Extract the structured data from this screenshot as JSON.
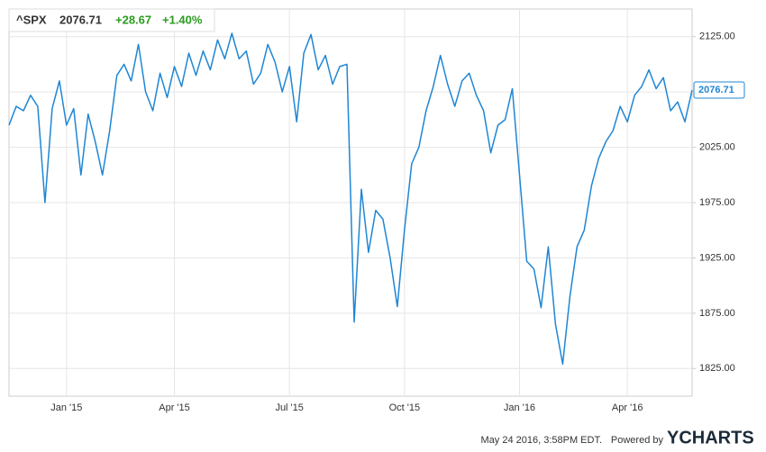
{
  "chart_data": {
    "type": "line",
    "symbol": "^SPX",
    "change": "+28.67",
    "change_pct": "+1.40%",
    "timestamp": "May 24 2016, 3:58PM EDT.",
    "powered_by": "Powered by",
    "logo": "YCHARTS",
    "categories": [
      null,
      null,
      null,
      null,
      null,
      null,
      null,
      null,
      "Jan '15",
      null,
      null,
      null,
      null,
      null,
      null,
      null,
      null,
      null,
      null,
      null,
      null,
      null,
      null,
      "Apr '15",
      null,
      null,
      null,
      null,
      null,
      null,
      null,
      null,
      null,
      null,
      null,
      null,
      null,
      null,
      null,
      "Jul '15",
      null,
      null,
      null,
      null,
      null,
      null,
      null,
      null,
      null,
      null,
      null,
      null,
      null,
      null,
      null,
      "Oct '15",
      null,
      null,
      null,
      null,
      null,
      null,
      null,
      null,
      null,
      null,
      null,
      null,
      null,
      null,
      null,
      "Jan '16",
      null,
      null,
      null,
      null,
      null,
      null,
      null,
      null,
      null,
      null,
      null,
      null,
      null,
      null,
      "Apr '16",
      null,
      null,
      null,
      null,
      null,
      null,
      null,
      null,
      null
    ],
    "values": [
      2045,
      2062,
      2058,
      2072,
      2062,
      1975,
      2060,
      2085,
      2045,
      2060,
      2000,
      2055,
      2030,
      2000,
      2040,
      2090,
      2100,
      2085,
      2118,
      2075,
      2058,
      2092,
      2070,
      2098,
      2080,
      2110,
      2090,
      2112,
      2095,
      2122,
      2105,
      2128,
      2105,
      2112,
      2082,
      2092,
      2118,
      2102,
      2075,
      2098,
      2048,
      2110,
      2127,
      2095,
      2108,
      2082,
      2098,
      2100,
      1867,
      1987,
      1930,
      1968,
      1960,
      1925,
      1881,
      1950,
      2010,
      2025,
      2058,
      2080,
      2108,
      2082,
      2062,
      2085,
      2092,
      2072,
      2058,
      2020,
      2045,
      2050,
      2078,
      2000,
      1922,
      1915,
      1880,
      1935,
      1865,
      1829,
      1890,
      1935,
      1950,
      1990,
      2015,
      2030,
      2040,
      2062,
      2048,
      2072,
      2080,
      2095,
      2078,
      2088,
      2058,
      2066,
      2048,
      2076.71
    ],
    "color": "#1f86d4",
    "ylim": [
      1800,
      2150
    ],
    "yticks": [
      {
        "value": 1825,
        "label": "1825.00"
      },
      {
        "value": 1875,
        "label": "1875.00"
      },
      {
        "value": 1925,
        "label": "1925.00"
      },
      {
        "value": 1975,
        "label": "1975.00"
      },
      {
        "value": 2025,
        "label": "2025.00"
      },
      {
        "value": 2075,
        "label": "2075.00"
      },
      {
        "value": 2125,
        "label": "2125.00"
      }
    ],
    "grid": true
  }
}
